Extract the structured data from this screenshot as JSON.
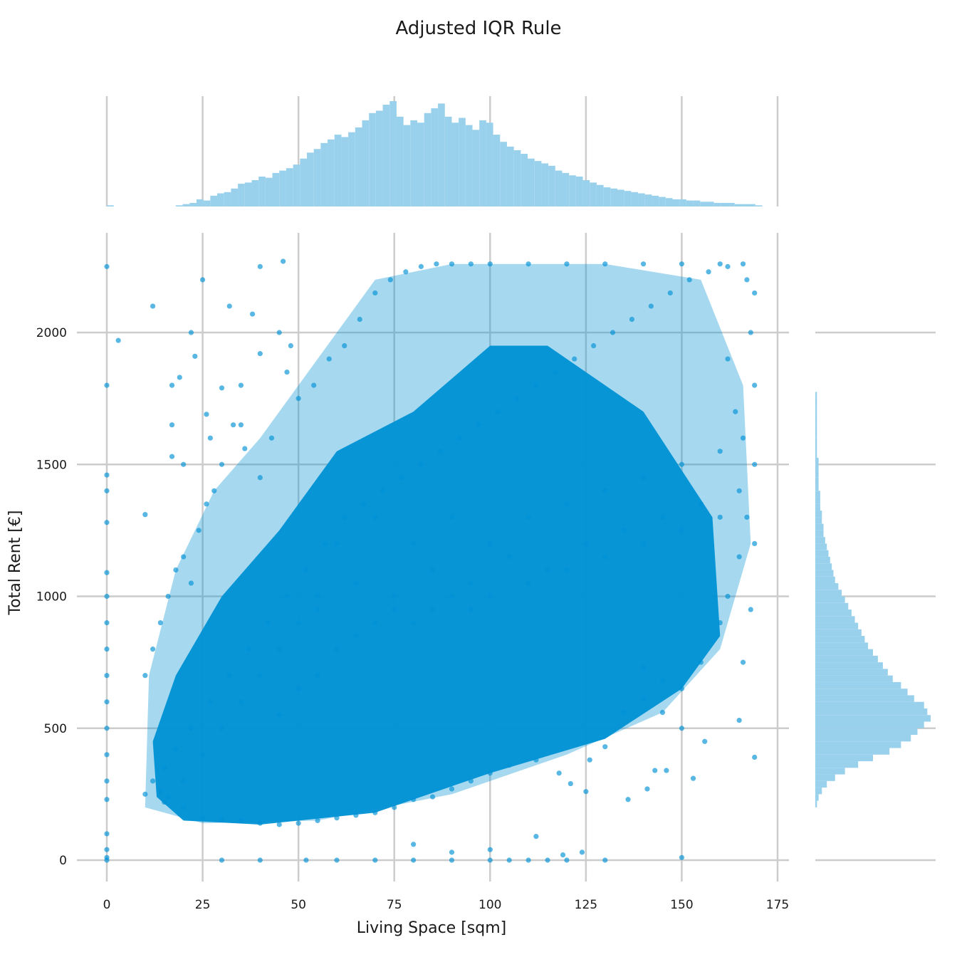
{
  "chart_data": {
    "type": "scatter",
    "title": "Adjusted IQR Rule",
    "xlabel": "Living Space [sqm]",
    "ylabel": "Total Rent [€]",
    "xlim": [
      0,
      175
    ],
    "ylim": [
      0,
      2280
    ],
    "x_ticks": [
      0,
      25,
      50,
      75,
      100,
      125,
      150,
      175
    ],
    "y_ticks": [
      0,
      500,
      1000,
      1500,
      2000
    ],
    "grid": true,
    "marginals": [
      "top-histogram",
      "right-histogram"
    ],
    "colors": {
      "points": "#0091d5",
      "histogram": "#99d1ec",
      "grid": "#cccccc"
    },
    "series": [
      {
        "points": [
          [
            0,
            2250
          ],
          [
            0,
            1800
          ],
          [
            0,
            1460
          ],
          [
            0,
            1400
          ],
          [
            0,
            1280
          ],
          [
            0,
            1090
          ],
          [
            0,
            1000
          ],
          [
            0,
            900
          ],
          [
            0,
            800
          ],
          [
            0,
            700
          ],
          [
            0,
            600
          ],
          [
            0,
            500
          ],
          [
            0,
            400
          ],
          [
            0,
            300
          ],
          [
            0,
            230
          ],
          [
            0,
            100
          ],
          [
            0,
            40
          ],
          [
            0,
            10
          ],
          [
            0,
            0
          ],
          [
            3,
            1970
          ],
          [
            10,
            1310
          ],
          [
            12,
            2100
          ],
          [
            17,
            1800
          ],
          [
            17,
            1650
          ],
          [
            17,
            1530
          ],
          [
            19,
            1830
          ],
          [
            20,
            1500
          ],
          [
            22,
            2000
          ],
          [
            23,
            1910
          ],
          [
            25,
            2200
          ],
          [
            26,
            1690
          ],
          [
            27,
            1600
          ],
          [
            30,
            1790
          ],
          [
            32,
            2100
          ],
          [
            35,
            1800
          ],
          [
            35,
            1650
          ],
          [
            38,
            2070
          ],
          [
            40,
            2250
          ],
          [
            40,
            1920
          ],
          [
            45,
            2000
          ],
          [
            46,
            2270
          ],
          [
            48,
            1950
          ],
          [
            55,
            1000
          ],
          [
            60,
            1200
          ],
          [
            70,
            1300
          ],
          [
            80,
            1200
          ],
          [
            90,
            1300
          ],
          [
            100,
            1200
          ],
          [
            110,
            1300
          ],
          [
            120,
            1350
          ],
          [
            130,
            1400
          ],
          [
            140,
            1450
          ],
          [
            150,
            1500
          ],
          [
            160,
            1550
          ],
          [
            45,
            800
          ],
          [
            50,
            900
          ],
          [
            55,
            950
          ],
          [
            65,
            1050
          ],
          [
            75,
            1000
          ],
          [
            85,
            1100
          ],
          [
            95,
            1050
          ],
          [
            105,
            1150
          ],
          [
            115,
            1100
          ],
          [
            125,
            1200
          ],
          [
            135,
            1250
          ],
          [
            145,
            1300
          ],
          [
            155,
            1350
          ],
          [
            20,
            300
          ],
          [
            25,
            400
          ],
          [
            30,
            500
          ],
          [
            35,
            600
          ],
          [
            40,
            700
          ],
          [
            45,
            550
          ],
          [
            50,
            650
          ],
          [
            55,
            700
          ],
          [
            60,
            800
          ],
          [
            65,
            850
          ],
          [
            70,
            900
          ],
          [
            75,
            950
          ],
          [
            80,
            900
          ],
          [
            85,
            950
          ],
          [
            90,
            1000
          ],
          [
            95,
            950
          ],
          [
            100,
            1000
          ],
          [
            110,
            1050
          ],
          [
            120,
            1100
          ],
          [
            130,
            1150
          ],
          [
            140,
            1200
          ],
          [
            150,
            1250
          ],
          [
            160,
            1300
          ],
          [
            165,
            1400
          ],
          [
            15,
            350
          ],
          [
            18,
            420
          ],
          [
            22,
            500
          ],
          [
            27,
            600
          ],
          [
            32,
            700
          ],
          [
            37,
            800
          ],
          [
            42,
            900
          ],
          [
            47,
            1000
          ],
          [
            52,
            1100
          ],
          [
            57,
            1200
          ],
          [
            62,
            1300
          ],
          [
            67,
            1350
          ],
          [
            72,
            1400
          ],
          [
            77,
            1450
          ],
          [
            82,
            1500
          ],
          [
            87,
            1550
          ],
          [
            92,
            1600
          ],
          [
            97,
            1650
          ],
          [
            102,
            1700
          ],
          [
            107,
            1750
          ],
          [
            112,
            1800
          ],
          [
            117,
            1850
          ],
          [
            122,
            1900
          ],
          [
            127,
            1950
          ],
          [
            132,
            2000
          ],
          [
            137,
            2050
          ],
          [
            142,
            2100
          ],
          [
            147,
            2150
          ],
          [
            152,
            2200
          ],
          [
            157,
            2230
          ],
          [
            162,
            2250
          ],
          [
            167,
            2200
          ],
          [
            169,
            2150
          ],
          [
            168,
            2000
          ],
          [
            169,
            1800
          ],
          [
            169,
            1500
          ],
          [
            169,
            1200
          ],
          [
            168,
            950
          ],
          [
            166,
            750
          ],
          [
            165,
            530
          ],
          [
            169,
            390
          ],
          [
            156,
            450
          ],
          [
            150,
            500
          ],
          [
            145,
            560
          ],
          [
            140,
            610
          ],
          [
            135,
            560
          ],
          [
            130,
            430
          ],
          [
            126,
            380
          ],
          [
            121,
            290
          ],
          [
            118,
            330
          ],
          [
            112,
            380
          ],
          [
            105,
            360
          ],
          [
            100,
            330
          ],
          [
            95,
            300
          ],
          [
            90,
            270
          ],
          [
            85,
            240
          ],
          [
            80,
            230
          ],
          [
            75,
            200
          ],
          [
            70,
            180
          ],
          [
            65,
            170
          ],
          [
            60,
            160
          ],
          [
            55,
            150
          ],
          [
            50,
            140
          ],
          [
            45,
            135
          ],
          [
            40,
            140
          ],
          [
            35,
            150
          ],
          [
            30,
            155
          ],
          [
            25,
            160
          ],
          [
            20,
            200
          ],
          [
            15,
            220
          ],
          [
            10,
            250
          ],
          [
            12,
            300
          ],
          [
            14,
            260
          ],
          [
            16,
            240
          ],
          [
            10,
            700
          ],
          [
            12,
            800
          ],
          [
            14,
            900
          ],
          [
            16,
            1000
          ],
          [
            18,
            1100
          ],
          [
            20,
            1150
          ],
          [
            22,
            1050
          ],
          [
            24,
            1250
          ],
          [
            26,
            1350
          ],
          [
            28,
            1400
          ],
          [
            30,
            1500
          ],
          [
            33,
            1650
          ],
          [
            36,
            1560
          ],
          [
            40,
            1450
          ],
          [
            43,
            1600
          ],
          [
            47,
            1850
          ],
          [
            50,
            1750
          ],
          [
            54,
            1800
          ],
          [
            58,
            1900
          ],
          [
            62,
            1950
          ],
          [
            66,
            2050
          ],
          [
            70,
            2150
          ],
          [
            74,
            2200
          ],
          [
            78,
            2230
          ],
          [
            82,
            2250
          ],
          [
            86,
            2260
          ],
          [
            90,
            2260
          ],
          [
            95,
            2260
          ],
          [
            100,
            2260
          ],
          [
            110,
            2260
          ],
          [
            120,
            2260
          ],
          [
            130,
            2260
          ],
          [
            140,
            2260
          ],
          [
            150,
            2260
          ],
          [
            160,
            2260
          ],
          [
            166,
            2260
          ],
          [
            30,
            0
          ],
          [
            40,
            0
          ],
          [
            52,
            0
          ],
          [
            60,
            0
          ],
          [
            70,
            0
          ],
          [
            80,
            0
          ],
          [
            90,
            0
          ],
          [
            100,
            0
          ],
          [
            105,
            0
          ],
          [
            110,
            0
          ],
          [
            115,
            0
          ],
          [
            120,
            0
          ],
          [
            130,
            0
          ],
          [
            150,
            10
          ],
          [
            80,
            60
          ],
          [
            90,
            30
          ],
          [
            100,
            40
          ],
          [
            112,
            90
          ],
          [
            119,
            20
          ],
          [
            124,
            30
          ],
          [
            125,
            260
          ],
          [
            136,
            230
          ],
          [
            141,
            270
          ],
          [
            143,
            340
          ],
          [
            146,
            340
          ],
          [
            153,
            310
          ],
          [
            140,
            730
          ],
          [
            145,
            680
          ],
          [
            150,
            650
          ],
          [
            155,
            750
          ],
          [
            160,
            900
          ],
          [
            162,
            1000
          ],
          [
            165,
            1150
          ],
          [
            167,
            1300
          ],
          [
            166,
            1600
          ],
          [
            164,
            1700
          ],
          [
            162,
            1900
          ]
        ]
      }
    ],
    "top_histogram": {
      "bin_start": 0,
      "bin_width": 1.8,
      "counts": [
        1,
        0,
        0,
        0,
        0,
        0,
        0,
        0,
        0,
        0,
        1,
        2,
        3,
        6,
        5,
        9,
        11,
        12,
        15,
        19,
        20,
        22,
        25,
        24,
        28,
        30,
        32,
        35,
        40,
        45,
        48,
        53,
        56,
        60,
        58,
        62,
        66,
        72,
        78,
        80,
        85,
        88,
        75,
        68,
        72,
        70,
        78,
        82,
        86,
        75,
        70,
        74,
        68,
        64,
        72,
        70,
        60,
        54,
        50,
        47,
        44,
        40,
        38,
        36,
        34,
        30,
        28,
        26,
        25,
        22,
        20,
        18,
        16,
        15,
        14,
        13,
        12,
        11,
        10,
        9,
        8,
        7,
        6,
        6,
        5,
        5,
        4,
        4,
        3,
        3,
        3,
        2,
        2,
        2,
        1
      ]
    },
    "right_histogram": {
      "bin_start": 0,
      "bin_width": 25,
      "counts": [
        0,
        0,
        0,
        0,
        0,
        0,
        0,
        0,
        1,
        2,
        4,
        7,
        12,
        18,
        26,
        35,
        45,
        52,
        58,
        62,
        66,
        70,
        68,
        66,
        60,
        56,
        52,
        47,
        44,
        41,
        38,
        35,
        32,
        30,
        28,
        26,
        24,
        22,
        20,
        18,
        16,
        14,
        12,
        11,
        10,
        9,
        8,
        7,
        6,
        5,
        5,
        4,
        4,
        3,
        3,
        3,
        2,
        2,
        2,
        2,
        2,
        1,
        1,
        1,
        1,
        1,
        1,
        1,
        1,
        1,
        1,
        0,
        0,
        0,
        0,
        0,
        0,
        0,
        0,
        0,
        0,
        0,
        0,
        0,
        0,
        0,
        0,
        0,
        0,
        0,
        0
      ]
    }
  }
}
